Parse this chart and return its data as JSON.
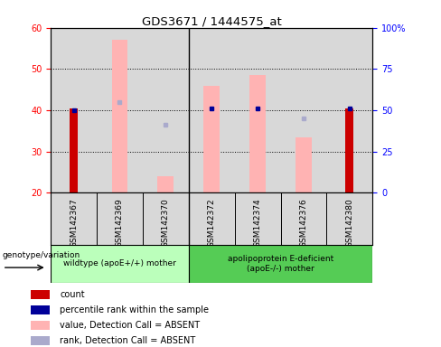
{
  "title": "GDS3671 / 1444575_at",
  "samples": [
    "GSM142367",
    "GSM142369",
    "GSM142370",
    "GSM142372",
    "GSM142374",
    "GSM142376",
    "GSM142380"
  ],
  "ylim": [
    20,
    60
  ],
  "y2lim": [
    0,
    100
  ],
  "yticks": [
    20,
    30,
    40,
    50,
    60
  ],
  "y2ticks": [
    0,
    25,
    50,
    75,
    100
  ],
  "y2ticklabels": [
    "0",
    "25",
    "50",
    "75",
    "100%"
  ],
  "bar_bottom": 20,
  "red_bars": {
    "GSM142367": 40.5,
    "GSM142380": 40.5
  },
  "pink_bars": {
    "GSM142369": [
      20,
      57
    ],
    "GSM142370": [
      20,
      24
    ],
    "GSM142372": [
      20,
      46
    ],
    "GSM142374": [
      20,
      48.5
    ],
    "GSM142376": [
      20,
      33.5
    ]
  },
  "blue_dots": {
    "GSM142367": 40.0,
    "GSM142372": 40.5,
    "GSM142374": 40.5,
    "GSM142380": 40.5
  },
  "light_blue_dots": {
    "GSM142369": 42.0,
    "GSM142370": 36.5,
    "GSM142376": 38.0
  },
  "group1_count": 3,
  "group2_count": 4,
  "group1_label": "wildtype (apoE+/+) mother",
  "group2_label": "apolipoprotein E-deficient\n(apoE-/-) mother",
  "group_label_prefix": "genotype/variation",
  "group1_color": "#bbffbb",
  "group2_color": "#55cc55",
  "red_color": "#cc0000",
  "pink_color": "#ffb3b3",
  "blue_color": "#000099",
  "light_blue_color": "#aaaacc",
  "plot_bg": "#ffffff",
  "column_bg": "#d8d8d8",
  "legend_items": [
    {
      "label": "count",
      "color": "#cc0000"
    },
    {
      "label": "percentile rank within the sample",
      "color": "#000099"
    },
    {
      "label": "value, Detection Call = ABSENT",
      "color": "#ffb3b3"
    },
    {
      "label": "rank, Detection Call = ABSENT",
      "color": "#aaaacc"
    }
  ]
}
